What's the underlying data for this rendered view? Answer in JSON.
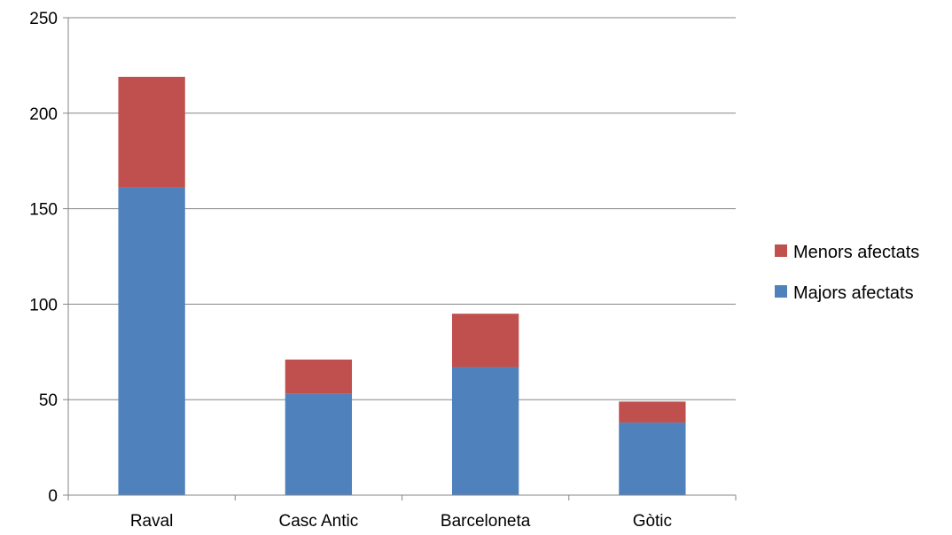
{
  "chart_data": {
    "type": "bar",
    "stacked": true,
    "categories": [
      "Raval",
      "Casc Antic",
      "Barceloneta",
      "Gòtic"
    ],
    "series": [
      {
        "name": "Majors afectats",
        "values": [
          161,
          53,
          67,
          38
        ],
        "color": "#4F81BD"
      },
      {
        "name": "Menors afectats",
        "values": [
          58,
          18,
          28,
          11
        ],
        "color": "#C0504D"
      }
    ],
    "ylim": [
      0,
      250
    ],
    "yticks": [
      0,
      50,
      100,
      150,
      200,
      250
    ],
    "grid": true,
    "legend": [
      "Menors afectats",
      "Majors afectats"
    ],
    "legend_position": "right"
  }
}
